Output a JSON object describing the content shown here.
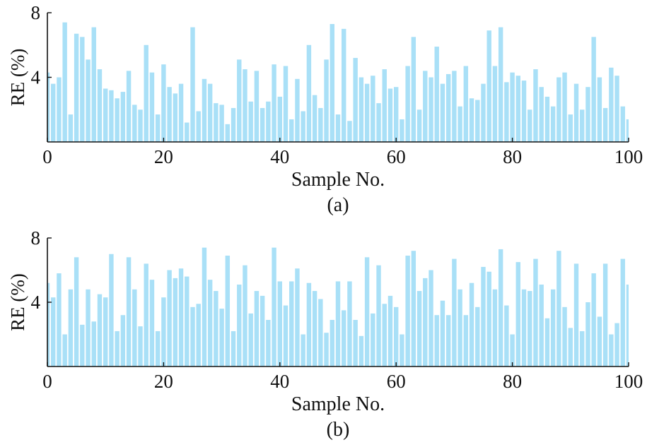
{
  "colors": {
    "bar": "#a9e0f7",
    "axis": "#111111"
  },
  "chart_data": [
    {
      "type": "bar",
      "panel_label": "(a)",
      "xlabel": "Sample No.",
      "ylabel": "RE (%)",
      "xlim": [
        0,
        100
      ],
      "ylim": [
        0,
        8
      ],
      "xticks": [
        0,
        20,
        40,
        60,
        80,
        100
      ],
      "yticks": [
        4,
        8
      ],
      "x": [
        0,
        1,
        2,
        3,
        4,
        5,
        6,
        7,
        8,
        9,
        10,
        11,
        12,
        13,
        14,
        15,
        16,
        17,
        18,
        19,
        20,
        21,
        22,
        23,
        24,
        25,
        26,
        27,
        28,
        29,
        30,
        31,
        32,
        33,
        34,
        35,
        36,
        37,
        38,
        39,
        40,
        41,
        42,
        43,
        44,
        45,
        46,
        47,
        48,
        49,
        50,
        51,
        52,
        53,
        54,
        55,
        56,
        57,
        58,
        59,
        60,
        61,
        62,
        63,
        64,
        65,
        66,
        67,
        68,
        69,
        70,
        71,
        72,
        73,
        74,
        75,
        76,
        77,
        78,
        79,
        80,
        81,
        82,
        83,
        84,
        85,
        86,
        87,
        88,
        89,
        90,
        91,
        92,
        93,
        94,
        95,
        96,
        97,
        98,
        99,
        100
      ],
      "values": [
        4.3,
        3.6,
        4.0,
        7.4,
        1.7,
        6.7,
        6.5,
        5.1,
        7.1,
        4.5,
        3.3,
        3.2,
        2.7,
        3.1,
        4.4,
        2.3,
        2.0,
        6.0,
        4.3,
        1.7,
        4.8,
        3.4,
        3.0,
        3.6,
        1.2,
        7.1,
        1.9,
        3.9,
        3.6,
        2.4,
        2.3,
        1.1,
        2.1,
        5.1,
        4.5,
        2.5,
        4.4,
        2.1,
        2.5,
        4.8,
        2.8,
        4.7,
        1.4,
        3.9,
        1.9,
        6.0,
        2.9,
        2.1,
        5.1,
        7.3,
        1.7,
        7.0,
        1.3,
        5.2,
        4.0,
        3.6,
        4.1,
        2.4,
        4.5,
        3.3,
        3.4,
        1.4,
        4.7,
        6.5,
        2.0,
        4.4,
        4.0,
        5.9,
        3.6,
        4.2,
        4.4,
        2.2,
        4.7,
        2.7,
        2.6,
        3.6,
        6.9,
        4.7,
        7.1,
        3.7,
        4.3,
        4.1,
        3.8,
        2.0,
        4.5,
        3.4,
        2.8,
        2.2,
        4.0,
        4.3,
        1.7,
        3.6,
        2.0,
        3.4,
        6.5,
        4.0,
        2.1,
        4.6,
        4.1,
        2.2,
        1.4
      ]
    },
    {
      "type": "bar",
      "panel_label": "(b)",
      "xlabel": "Sample No.",
      "ylabel": "RE (%)",
      "xlim": [
        0,
        100
      ],
      "ylim": [
        0,
        8
      ],
      "xticks": [
        0,
        20,
        40,
        60,
        80,
        100
      ],
      "yticks": [
        4,
        8
      ],
      "x": [
        0,
        1,
        2,
        3,
        4,
        5,
        6,
        7,
        8,
        9,
        10,
        11,
        12,
        13,
        14,
        15,
        16,
        17,
        18,
        19,
        20,
        21,
        22,
        23,
        24,
        25,
        26,
        27,
        28,
        29,
        30,
        31,
        32,
        33,
        34,
        35,
        36,
        37,
        38,
        39,
        40,
        41,
        42,
        43,
        44,
        45,
        46,
        47,
        48,
        49,
        50,
        51,
        52,
        53,
        54,
        55,
        56,
        57,
        58,
        59,
        60,
        61,
        62,
        63,
        64,
        65,
        66,
        67,
        68,
        69,
        70,
        71,
        72,
        73,
        74,
        75,
        76,
        77,
        78,
        79,
        80,
        81,
        82,
        83,
        84,
        85,
        86,
        87,
        88,
        89,
        90,
        91,
        92,
        93,
        94,
        95,
        96,
        97,
        98,
        99,
        100
      ],
      "values": [
        5.2,
        4.3,
        5.8,
        2.0,
        4.8,
        6.8,
        2.6,
        4.8,
        2.8,
        4.5,
        4.3,
        7.0,
        2.2,
        3.2,
        6.8,
        4.8,
        2.5,
        6.4,
        5.4,
        2.2,
        4.3,
        6.0,
        5.5,
        6.1,
        5.6,
        3.7,
        3.9,
        7.4,
        5.4,
        4.7,
        3.6,
        6.9,
        2.2,
        5.1,
        6.3,
        3.3,
        4.7,
        4.4,
        2.9,
        7.4,
        5.3,
        3.8,
        5.3,
        6.1,
        2.0,
        5.2,
        4.7,
        4.2,
        2.1,
        2.9,
        5.3,
        3.5,
        5.3,
        2.9,
        1.9,
        6.8,
        3.3,
        6.3,
        3.9,
        4.4,
        3.7,
        2.0,
        6.9,
        7.2,
        4.7,
        5.5,
        6.0,
        3.2,
        4.1,
        3.2,
        6.7,
        4.8,
        3.2,
        5.2,
        3.7,
        6.2,
        5.9,
        4.8,
        7.3,
        3.8,
        2.0,
        6.5,
        4.8,
        4.7,
        6.7,
        5.1,
        3.0,
        4.8,
        7.2,
        3.7,
        2.4,
        6.4,
        2.2,
        4.0,
        5.8,
        3.1,
        6.4,
        2.0,
        2.7,
        6.7,
        5.1
      ]
    }
  ]
}
